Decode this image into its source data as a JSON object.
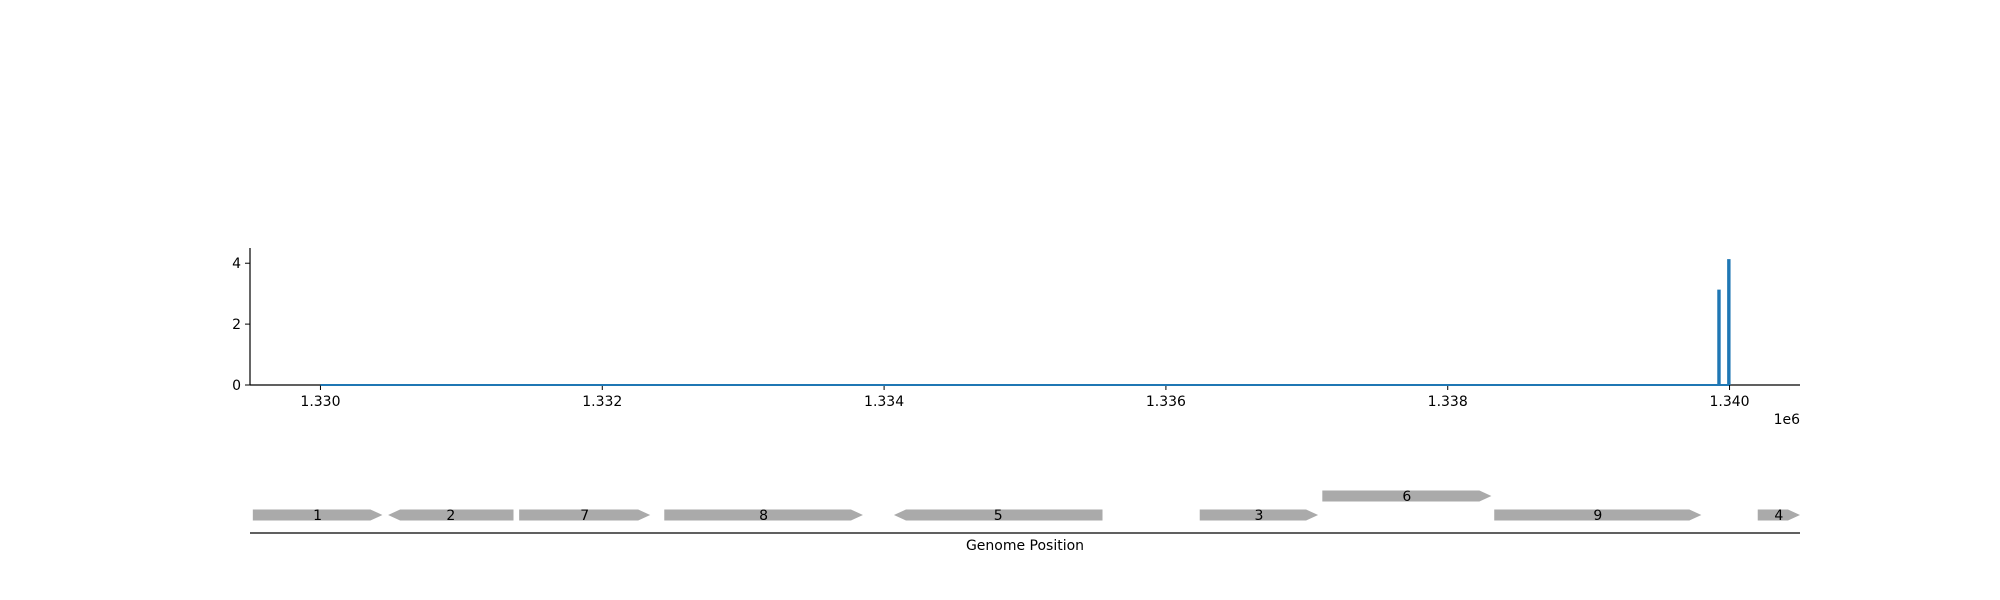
{
  "chart_data": {
    "type": "line",
    "title": "",
    "xlabel": "Genome Position",
    "ylabel": "",
    "x_offset_label": "1e6",
    "xlim": [
      1329500,
      1340500
    ],
    "ylim": [
      0,
      4.5
    ],
    "x_ticks": [
      1330000,
      1332000,
      1334000,
      1336000,
      1338000,
      1340000
    ],
    "x_tick_labels": [
      "1.330",
      "1.332",
      "1.334",
      "1.336",
      "1.338",
      "1.340"
    ],
    "y_ticks": [
      0,
      2,
      4
    ],
    "y_tick_labels": [
      "0",
      "2",
      "4"
    ],
    "grid": false,
    "line_color": "#1f77b4",
    "series": [
      {
        "x": [
          1330000,
          1339920,
          1339920,
          1339930,
          1339930,
          1339990,
          1339990,
          1340000,
          1340000
        ],
        "y": [
          0,
          0,
          3.1,
          3.1,
          0,
          0,
          4.1,
          4.1,
          0
        ]
      }
    ],
    "genes": {
      "color": "#aaaaaa",
      "track_start": 1329500,
      "track_end": 1340500,
      "items": [
        {
          "label": "1",
          "start": 1329520,
          "end": 1330440,
          "strand": "+",
          "row": 0
        },
        {
          "label": "2",
          "start": 1330480,
          "end": 1331370,
          "strand": "-",
          "row": 0
        },
        {
          "label": "7",
          "start": 1331410,
          "end": 1332340,
          "strand": "+",
          "row": 0
        },
        {
          "label": "8",
          "start": 1332440,
          "end": 1333850,
          "strand": "+",
          "row": 0
        },
        {
          "label": "5",
          "start": 1334070,
          "end": 1335550,
          "strand": "-",
          "row": 0
        },
        {
          "label": "3",
          "start": 1336240,
          "end": 1337080,
          "strand": "+",
          "row": 0
        },
        {
          "label": "6",
          "start": 1337110,
          "end": 1338310,
          "strand": "+",
          "row": 1
        },
        {
          "label": "9",
          "start": 1338330,
          "end": 1339800,
          "strand": "+",
          "row": 0
        },
        {
          "label": "4",
          "start": 1340200,
          "end": 1340500,
          "strand": "+",
          "row": 0
        }
      ]
    }
  }
}
